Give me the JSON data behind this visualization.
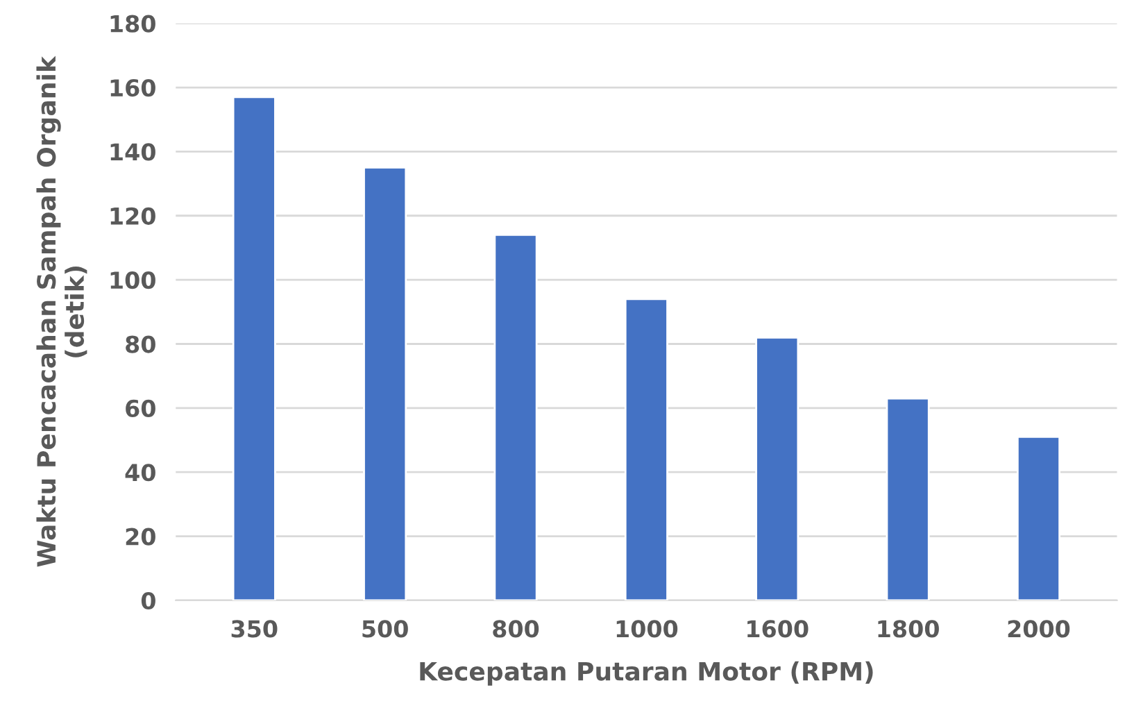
{
  "chart_data": {
    "type": "bar",
    "xlabel": "Kecepatan Putaran Motor (RPM)",
    "ylabel": "Waktu Pencacahan Sampah Organik\n(detik)",
    "categories": [
      "350",
      "500",
      "800",
      "1000",
      "1600",
      "1800",
      "2000"
    ],
    "values": [
      157,
      135,
      114,
      94,
      82,
      63,
      51
    ],
    "color": "#4472c4",
    "ylim": [
      0,
      180
    ],
    "yticks": [
      0,
      20,
      40,
      60,
      80,
      100,
      120,
      140,
      160,
      180
    ],
    "grid": "y"
  }
}
